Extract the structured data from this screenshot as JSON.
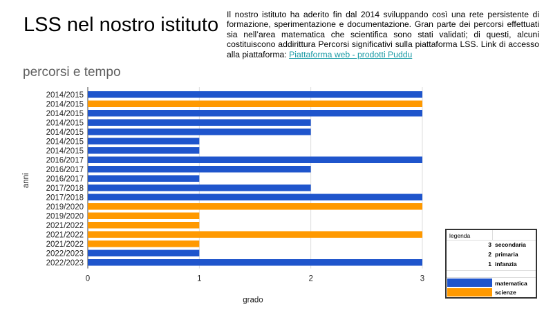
{
  "slide": {
    "title": "LSS nel nostro istituto",
    "intro_text": "Il nostro istituto ha aderito fin dal 2014 sviluppando così una rete persistente di formazione, sperimentazione e documentazione. Gran parte dei percorsi effettuati sia nell’area matematica che scientifica sono stati validati; di questi, alcuni costituiscono addirittura Percorsi significativi sulla piattaforma LSS. Link di accesso alla piattaforma: ",
    "link_label": "Piattaforma web - prodotti Puddu"
  },
  "legend": {
    "title": "legenda",
    "levels": [
      {
        "value": "3",
        "label": "secondaria"
      },
      {
        "value": "2",
        "label": "primaria"
      },
      {
        "value": "1",
        "label": "infanzia"
      }
    ],
    "areas": [
      {
        "label": "matematica",
        "color": "#1f55cc"
      },
      {
        "label": "scienze",
        "color": "#ff9900"
      }
    ]
  },
  "colors": {
    "matematica": "#1f55cc",
    "scienze": "#ff9900"
  },
  "chart_data": {
    "type": "bar",
    "orientation": "horizontal",
    "title": "percorsi e tempo",
    "xlabel": "grado",
    "ylabel": "anni",
    "xlim": [
      0,
      3
    ],
    "x_ticks": [
      0,
      1,
      2,
      3
    ],
    "grid": true,
    "categories": [
      "2014/2015",
      "2014/2015",
      "2014/2015",
      "2014/2015",
      "2014/2015",
      "2014/2015",
      "2014/2015",
      "2016/2017",
      "2016/2017",
      "2016/2017",
      "2017/2018",
      "2017/2018",
      "2019/2020",
      "2019/2020",
      "2021/2022",
      "2021/2022",
      "2021/2022",
      "2022/2023",
      "2022/2023"
    ],
    "values": [
      3,
      3,
      3,
      2,
      2,
      1,
      1,
      3,
      2,
      1,
      2,
      3,
      3,
      1,
      1,
      3,
      1,
      1,
      3
    ],
    "area": [
      "matematica",
      "scienze",
      "matematica",
      "matematica",
      "matematica",
      "matematica",
      "matematica",
      "matematica",
      "matematica",
      "matematica",
      "matematica",
      "matematica",
      "scienze",
      "scienze",
      "scienze",
      "scienze",
      "scienze",
      "matematica",
      "matematica"
    ]
  }
}
